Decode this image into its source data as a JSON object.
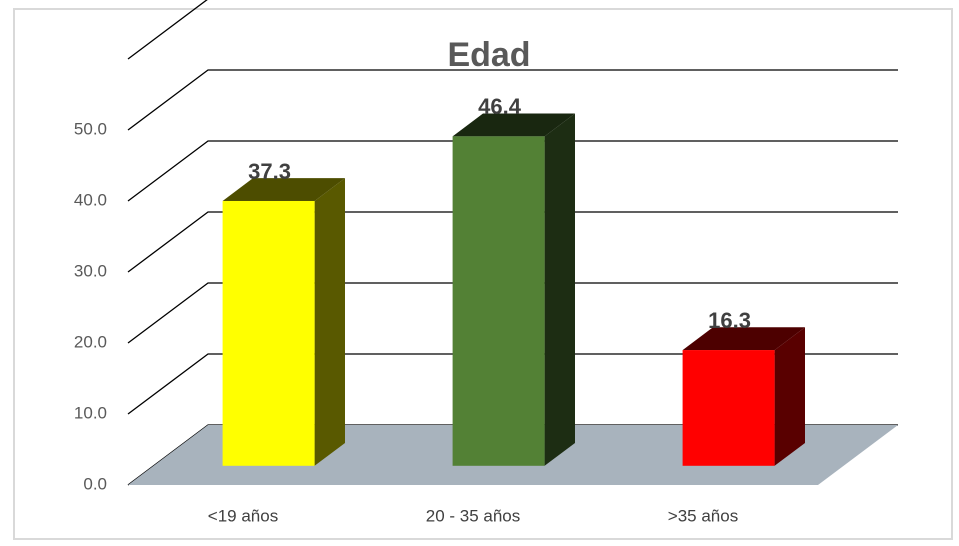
{
  "chart_data": {
    "type": "bar3d",
    "title": "Edad",
    "categories": [
      "<19 años",
      "20 - 35 años",
      ">35 años"
    ],
    "values": [
      37.3,
      46.4,
      16.3
    ],
    "colors": [
      "#ffff00",
      "#538135",
      "#ff0000"
    ],
    "ylim": [
      0,
      60
    ],
    "yticks": [
      {
        "value": 0,
        "label": "0.0"
      },
      {
        "value": 10,
        "label": "10.0"
      },
      {
        "value": 20,
        "label": "20.0"
      },
      {
        "value": 30,
        "label": "30.0"
      },
      {
        "value": 40,
        "label": "40.0"
      },
      {
        "value": 50,
        "label": "50.0"
      }
    ],
    "grid": true
  }
}
